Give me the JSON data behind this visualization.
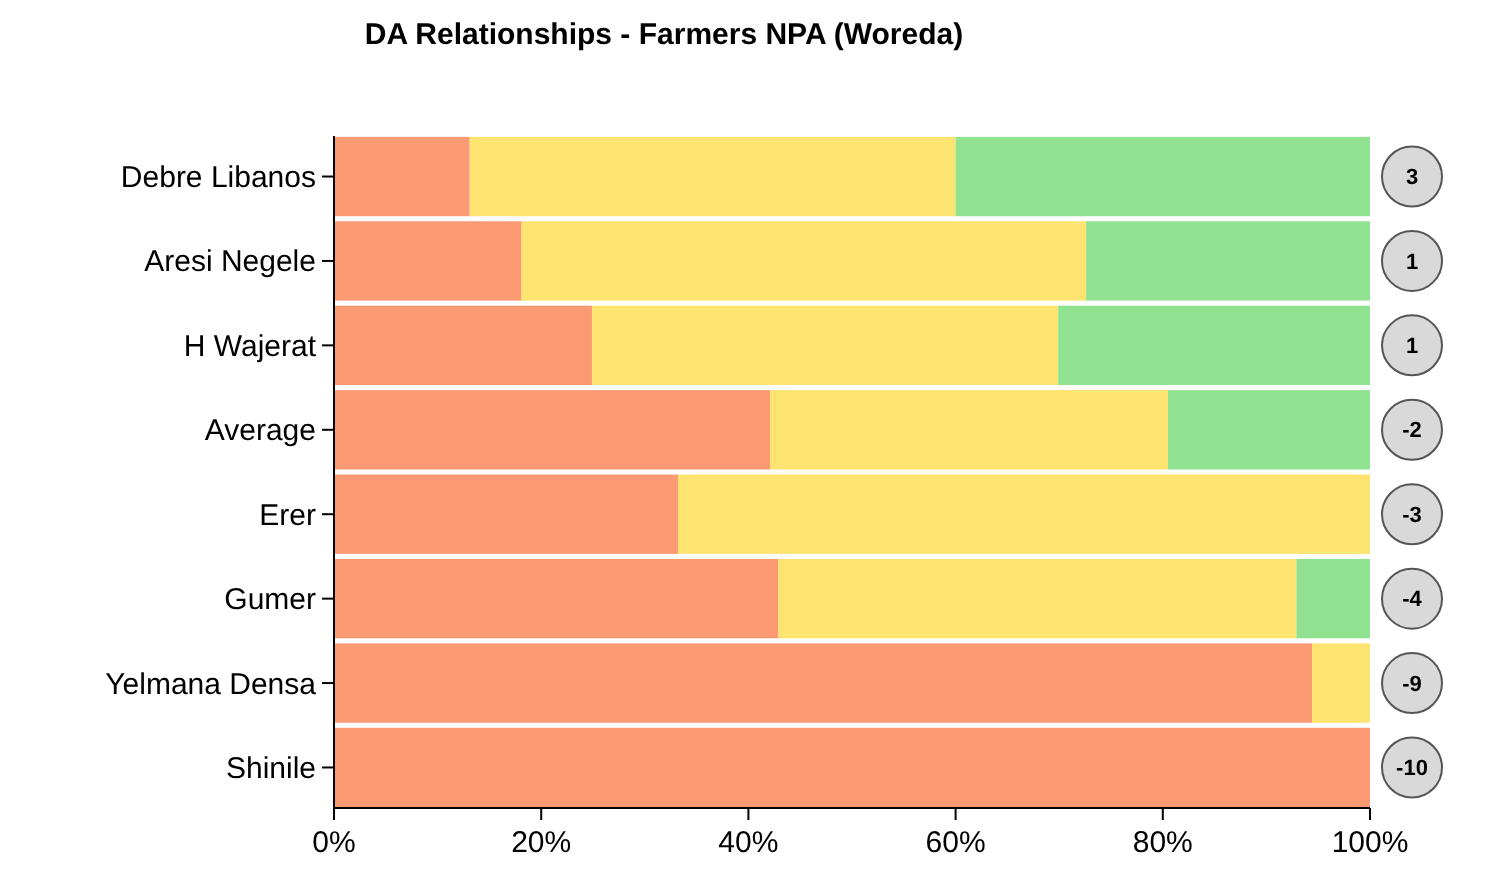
{
  "chart_data": {
    "type": "bar",
    "title": "DA Relationships - Farmers NPA (Woreda)",
    "orientation": "horizontal",
    "stacked": true,
    "categories": [
      "Debre Libanos",
      "Aresi Negele",
      "H Wajerat",
      "Average",
      "Erer",
      "Gumer",
      "Yelmana Densa",
      "Shinile"
    ],
    "series": [
      {
        "color": "#fc9a73",
        "values": [
          13.1,
          18.1,
          24.9,
          42.1,
          33.2,
          42.9,
          94.4,
          100
        ]
      },
      {
        "color": "#fde36f",
        "values": [
          46.9,
          54.5,
          45,
          38.4,
          66.8,
          50,
          5.6,
          0
        ]
      },
      {
        "color": "#90e190",
        "values": [
          40,
          27.4,
          30.1,
          19.5,
          0,
          7.1,
          0,
          0
        ]
      }
    ],
    "xlim": [
      0,
      100
    ],
    "xticks": [
      {
        "value": 0,
        "label": "0%"
      },
      {
        "value": 20,
        "label": "20%"
      },
      {
        "value": 40,
        "label": "40%"
      },
      {
        "value": 60,
        "label": "60%"
      },
      {
        "value": 80,
        "label": "80%"
      },
      {
        "value": 100,
        "label": "100%"
      }
    ],
    "annotations": [
      "3",
      "1",
      "1",
      "-2",
      "-3",
      "-4",
      "-9",
      "-10"
    ]
  }
}
